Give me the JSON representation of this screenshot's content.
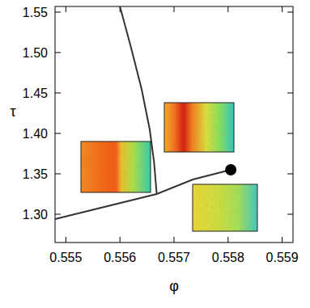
{
  "chart_data": {
    "type": "line",
    "x_label": "φ",
    "y_label": "τ",
    "xlim": [
      0.5548,
      0.5592
    ],
    "ylim": [
      1.265,
      1.557
    ],
    "xticks": [
      0.555,
      0.556,
      0.557,
      0.558,
      0.559
    ],
    "yticks": [
      {
        "value": 1.3,
        "label": "1.30"
      },
      1.35,
      {
        "value": 1.4,
        "label": "1.40"
      },
      1.45,
      {
        "value": 1.5,
        "label": "1.50"
      },
      1.55
    ],
    "series": [
      {
        "type": "line",
        "color": "#333333",
        "line_style": "solid",
        "x": [
          0.556,
          0.55621,
          0.5564,
          0.55655,
          0.55663,
          0.55668
        ],
        "values": [
          1.557,
          1.505,
          1.455,
          1.405,
          1.365,
          1.325
        ]
      },
      {
        "type": "line",
        "color": "#333333",
        "line_style": "solid",
        "x": [
          0.5548,
          0.55668,
          0.55735,
          0.55805
        ],
        "values": [
          1.294,
          1.325,
          1.343,
          1.355
        ]
      },
      {
        "type": "scatter",
        "color": "#000000",
        "marker": "circle",
        "x": [
          0.55805
        ],
        "values": [
          1.355
        ]
      }
    ]
  }
}
